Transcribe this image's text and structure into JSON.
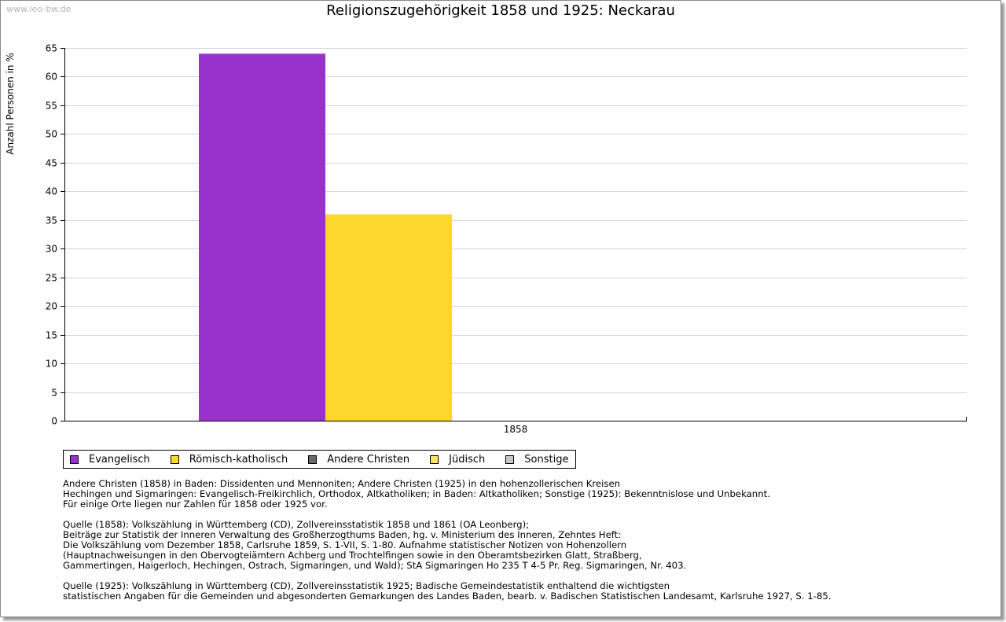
{
  "watermark": "www.leo-bw.de",
  "chart_data": {
    "type": "bar",
    "title": "Religionszugehörigkeit 1858 und 1925: Neckarau",
    "xlabel": "",
    "ylabel": "Anzahl Personen in %",
    "ylim": [
      0,
      65
    ],
    "yticks": [
      0,
      5,
      10,
      15,
      20,
      25,
      30,
      35,
      40,
      45,
      50,
      55,
      60,
      65
    ],
    "grid": true,
    "categories": [
      "1858"
    ],
    "series": [
      {
        "name": "Evangelisch",
        "color": "#9932cc",
        "values": [
          64
        ]
      },
      {
        "name": "Römisch-katholisch",
        "color": "#fdd62e",
        "values": [
          36
        ]
      },
      {
        "name": "Andere Christen",
        "color": "#6a6a6a",
        "values": [
          0
        ]
      },
      {
        "name": "Jüdisch",
        "color": "#fde36a",
        "values": [
          0
        ]
      },
      {
        "name": "Sonstige",
        "color": "#c8c8c8",
        "values": [
          0
        ]
      }
    ],
    "legend_position": "bottom-left"
  },
  "notes": {
    "block1": [
      "Andere Christen (1858) in Baden: Dissidenten und Mennoniten; Andere Christen (1925) in den hohenzollerischen Kreisen",
      "Hechingen und Sigmaringen: Evangelisch-Freikirchlich, Orthodox, Altkatholiken; in Baden: Altkatholiken; Sonstige (1925): Bekenntnislose und Unbekannt.",
      "Für einige Orte liegen nur Zahlen für 1858 oder 1925 vor."
    ],
    "block2": [
      "Quelle (1858): Volkszählung in Württemberg (CD), Zollvereinsstatistik 1858 und 1861 (OA Leonberg);",
      "Beiträge zur Statistik der Inneren Verwaltung des Großherzogthums Baden, hg. v. Ministerium des Inneren, Zehntes Heft:",
      "Die Volkszählung vom Dezember 1858, Carlsruhe 1859, S. 1-VII, S. 1-80. Aufnahme statistischer Notizen von Hohenzollern",
      "(Hauptnachweisungen in den Obervogteiämtern Achberg und Trochtelfingen sowie in den Oberamtsbezirken Glatt, Straßberg,",
      "Gammertingen, Haigerloch, Hechingen, Ostrach, Sigmaringen, und Wald); StA Sigmaringen Ho 235 T 4-5 Pr. Reg. Sigmaringen, Nr. 403."
    ],
    "block3": [
      "Quelle (1925): Volkszählung in Württemberg (CD), Zollvereinsstatistik 1925; Badische Gemeindestatistik enthaltend die wichtigsten",
      "statistischen Angaben für die Gemeinden und abgesonderten Gemarkungen des Landes Baden, bearb. v. Badischen Statistischen Landesamt, Karlsruhe 1927, S. 1-85."
    ]
  }
}
